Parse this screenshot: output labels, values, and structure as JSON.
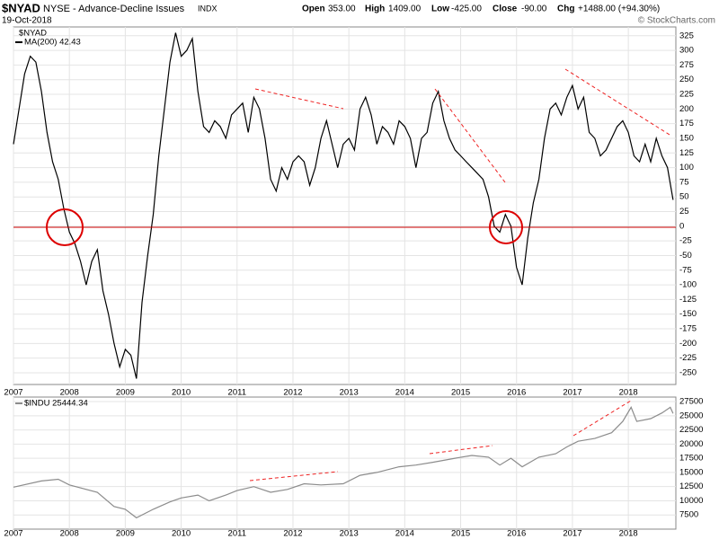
{
  "header": {
    "symbol": "$NYAD",
    "name": "NYSE - Advance-Decline Issues",
    "exchange": "INDX",
    "date": "19-Oct-2018",
    "open_label": "Open",
    "open": "353.00",
    "high_label": "High",
    "high": "1409.00",
    "low_label": "Low",
    "low": "-425.00",
    "close_label": "Close",
    "close": "-90.00",
    "chg_label": "Chg",
    "chg": "+1488.00 (+94.30%)",
    "credit": "© StockCharts.com"
  },
  "chart_data": [
    {
      "type": "line",
      "legend_title": "$NYAD",
      "x": [
        2007.0,
        2007.1,
        2007.2,
        2007.3,
        2007.4,
        2007.5,
        2007.6,
        2007.7,
        2007.8,
        2007.9,
        2008.0,
        2008.1,
        2008.2,
        2008.3,
        2008.4,
        2008.5,
        2008.6,
        2008.7,
        2008.8,
        2008.9,
        2009.0,
        2009.1,
        2009.2,
        2009.3,
        2009.4,
        2009.5,
        2009.6,
        2009.7,
        2009.8,
        2009.9,
        2010.0,
        2010.1,
        2010.2,
        2010.3,
        2010.4,
        2010.5,
        2010.6,
        2010.7,
        2010.8,
        2010.9,
        2011.0,
        2011.1,
        2011.2,
        2011.3,
        2011.4,
        2011.5,
        2011.6,
        2011.7,
        2011.8,
        2011.9,
        2012.0,
        2012.1,
        2012.2,
        2012.3,
        2012.4,
        2012.5,
        2012.6,
        2012.7,
        2012.8,
        2012.9,
        2013.0,
        2013.1,
        2013.2,
        2013.3,
        2013.4,
        2013.5,
        2013.6,
        2013.7,
        2013.8,
        2013.9,
        2014.0,
        2014.1,
        2014.2,
        2014.3,
        2014.4,
        2014.5,
        2014.6,
        2014.7,
        2014.8,
        2014.9,
        2015.0,
        2015.1,
        2015.2,
        2015.3,
        2015.4,
        2015.5,
        2015.6,
        2015.7,
        2015.8,
        2015.9,
        2016.0,
        2016.1,
        2016.2,
        2016.3,
        2016.4,
        2016.5,
        2016.6,
        2016.7,
        2016.8,
        2016.9,
        2017.0,
        2017.1,
        2017.2,
        2017.3,
        2017.4,
        2017.5,
        2017.6,
        2017.7,
        2017.8,
        2017.9,
        2018.0,
        2018.1,
        2018.2,
        2018.3,
        2018.4,
        2018.5,
        2018.6,
        2018.7,
        2018.8
      ],
      "series": [
        {
          "name": "MA(200) 42.43",
          "color": "#000000",
          "values": [
            140,
            200,
            260,
            290,
            280,
            230,
            160,
            110,
            80,
            30,
            -10,
            -30,
            -60,
            -100,
            -60,
            -40,
            -110,
            -150,
            -200,
            -240,
            -210,
            -220,
            -260,
            -130,
            -50,
            20,
            120,
            200,
            280,
            330,
            290,
            300,
            320,
            230,
            170,
            160,
            180,
            170,
            150,
            190,
            200,
            210,
            160,
            220,
            200,
            150,
            80,
            60,
            100,
            80,
            110,
            120,
            110,
            70,
            100,
            150,
            180,
            140,
            100,
            140,
            150,
            130,
            200,
            220,
            190,
            140,
            170,
            160,
            140,
            180,
            170,
            150,
            100,
            150,
            160,
            210,
            230,
            180,
            150,
            130,
            120,
            110,
            100,
            90,
            80,
            50,
            0,
            -10,
            20,
            0,
            -70,
            -100,
            -20,
            40,
            80,
            150,
            200,
            210,
            190,
            220,
            240,
            200,
            220,
            160,
            150,
            120,
            130,
            150,
            170,
            180,
            160,
            120,
            110,
            140,
            110,
            150,
            120,
            100,
            45
          ]
        }
      ],
      "xlim": [
        2007,
        2018.85
      ],
      "xticks": [
        2007,
        2008,
        2009,
        2010,
        2011,
        2012,
        2013,
        2014,
        2015,
        2016,
        2017,
        2018
      ],
      "ylim": [
        -270,
        340
      ],
      "yticks": [
        -250,
        -225,
        -200,
        -175,
        -150,
        -125,
        -100,
        -75,
        -50,
        -25,
        0,
        25,
        50,
        75,
        100,
        125,
        150,
        175,
        200,
        225,
        250,
        275,
        300,
        325
      ],
      "grid": true
    },
    {
      "type": "line",
      "x": [
        2007.0,
        2007.5,
        2007.8,
        2008.0,
        2008.5,
        2008.8,
        2009.0,
        2009.2,
        2009.5,
        2009.8,
        2010.0,
        2010.3,
        2010.5,
        2010.8,
        2011.0,
        2011.3,
        2011.6,
        2011.9,
        2012.2,
        2012.5,
        2012.9,
        2013.2,
        2013.5,
        2013.9,
        2014.2,
        2014.5,
        2014.9,
        2015.2,
        2015.5,
        2015.7,
        2015.9,
        2016.1,
        2016.4,
        2016.7,
        2016.9,
        2017.1,
        2017.4,
        2017.7,
        2017.9,
        2018.05,
        2018.15,
        2018.4,
        2018.6,
        2018.75,
        2018.8
      ],
      "series": [
        {
          "name": "$INDU 25444.34",
          "color": "#8c8c8c",
          "values": [
            12400,
            13500,
            13800,
            12800,
            11500,
            9000,
            8500,
            7000,
            8500,
            9800,
            10500,
            11000,
            10000,
            11000,
            11800,
            12500,
            11500,
            12000,
            13000,
            12800,
            13000,
            14500,
            15000,
            16000,
            16300,
            16800,
            17500,
            18000,
            17700,
            16300,
            17500,
            16000,
            17700,
            18300,
            19500,
            20500,
            21000,
            22000,
            24000,
            26500,
            24000,
            24500,
            25500,
            26500,
            25400
          ]
        }
      ],
      "xlim": [
        2007,
        2018.85
      ],
      "xticks": [
        2007,
        2008,
        2009,
        2010,
        2011,
        2012,
        2013,
        2014,
        2015,
        2016,
        2017,
        2018
      ],
      "ylim": [
        5000,
        28300
      ],
      "yticks": [
        7500,
        10000,
        12500,
        15000,
        17500,
        20000,
        22500,
        25000,
        27500
      ],
      "grid": true
    }
  ]
}
